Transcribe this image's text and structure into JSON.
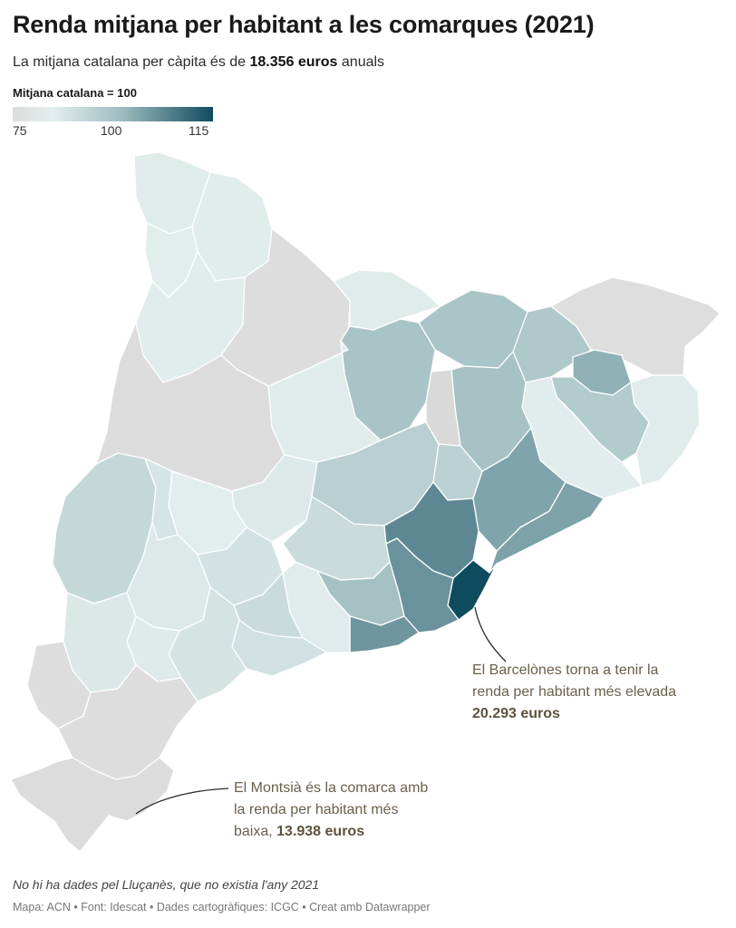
{
  "title": "Renda mitjana per habitant a les comarques (2021)",
  "subtitle": {
    "prefix": "La mitjana catalana per càpita és de ",
    "amount": "18.356 euros",
    "suffix": " anuals"
  },
  "legend": {
    "title": "Mitjana catalana = 100",
    "min": 75,
    "mid": 100,
    "max": 115,
    "min_label": "75",
    "mid_label": "100",
    "max_label": "115",
    "colors": [
      "#dcdcdc",
      "#e3eeee",
      "#9cbbbf",
      "#0f4b5e"
    ]
  },
  "annotations": {
    "barcelones": {
      "line1": "El Barcelònes torna a tenir la",
      "line2": "renda per habitant més elevada",
      "amount": "20.293 euros"
    },
    "montsia": {
      "line1": "El Montsià és la comarca amb",
      "line2": "la renda per habitant més",
      "line3_prefix": "baixa, ",
      "amount": "13.938 euros"
    }
  },
  "note": "No hi ha dades pel Lluçanès, que no existia l'any 2021",
  "credits": "Mapa: ACN • Font: Idescat • Dades cartogràfiques: ICGC  • Creat amb Datawrapper",
  "map_data": {
    "regions": [
      {
        "name": "Val d'Aran",
        "color": "#dfeceb"
      },
      {
        "name": "Alta Ribagorça",
        "color": "#e2eded"
      },
      {
        "name": "Pallars Sobirà",
        "color": "#e1eded"
      },
      {
        "name": "Pallars Jussà",
        "color": "#e1ecec"
      },
      {
        "name": "Alt Urgell",
        "color": "#dddddd"
      },
      {
        "name": "Cerdanya",
        "color": "#e0ecec"
      },
      {
        "name": "Ripollès",
        "color": "#aac5c7"
      },
      {
        "name": "Garrotxa",
        "color": "#afc8ca"
      },
      {
        "name": "Alt Empordà",
        "color": "#dedede"
      },
      {
        "name": "Pla de l'Estany",
        "color": "#90b1b6"
      },
      {
        "name": "Baix Empordà",
        "color": "#e0ebeb"
      },
      {
        "name": "Gironès",
        "color": "#b2cbcd"
      },
      {
        "name": "Selva",
        "color": "#e1ecec"
      },
      {
        "name": "Osona",
        "color": "#a7c2c5"
      },
      {
        "name": "Berguedà",
        "color": "#a9c4c6"
      },
      {
        "name": "Solsonès",
        "color": "#e0ecec"
      },
      {
        "name": "Noguera",
        "color": "#dcdcdc"
      },
      {
        "name": "Segarra",
        "color": "#dde9e9"
      },
      {
        "name": "Urgell",
        "color": "#e2eded"
      },
      {
        "name": "Bages",
        "color": "#b9cfd1"
      },
      {
        "name": "Moianès",
        "color": "#bcd1d3"
      },
      {
        "name": "Segrià",
        "color": "#c5d8d8"
      },
      {
        "name": "Pla d'Urgell",
        "color": "#d5e4e4"
      },
      {
        "name": "Garrigues",
        "color": "#dde9e9"
      },
      {
        "name": "Conca de Barberà",
        "color": "#d2e1e1"
      },
      {
        "name": "Anoia",
        "color": "#c9dbdb"
      },
      {
        "name": "Vallès Occidental",
        "color": "#5d8893"
      },
      {
        "name": "Vallès Oriental",
        "color": "#80a4ab"
      },
      {
        "name": "Maresme",
        "color": "#7ea2a9"
      },
      {
        "name": "Barcelonès",
        "color": "#0f4b5e"
      },
      {
        "name": "Baix Llobregat",
        "color": "#6a929c"
      },
      {
        "name": "Alt Penedès",
        "color": "#a6c1c4"
      },
      {
        "name": "Garraf",
        "color": "#6f959e"
      },
      {
        "name": "Baix Penedès",
        "color": "#e0ecec"
      },
      {
        "name": "Alt Camp",
        "color": "#cadbdb"
      },
      {
        "name": "Tarragonès",
        "color": "#d1e0e0"
      },
      {
        "name": "Baix Camp",
        "color": "#d5e3e3"
      },
      {
        "name": "Priorat",
        "color": "#dfeaea"
      },
      {
        "name": "Ribera d'Ebre",
        "color": "#dce8e8"
      },
      {
        "name": "Terra Alta",
        "color": "#dddddd"
      },
      {
        "name": "Baix Ebre",
        "color": "#dddddd"
      },
      {
        "name": "Montsià",
        "color": "#dcdcdc"
      },
      {
        "name": "Lluçanès",
        "color": "#d9d9d9"
      }
    ]
  }
}
